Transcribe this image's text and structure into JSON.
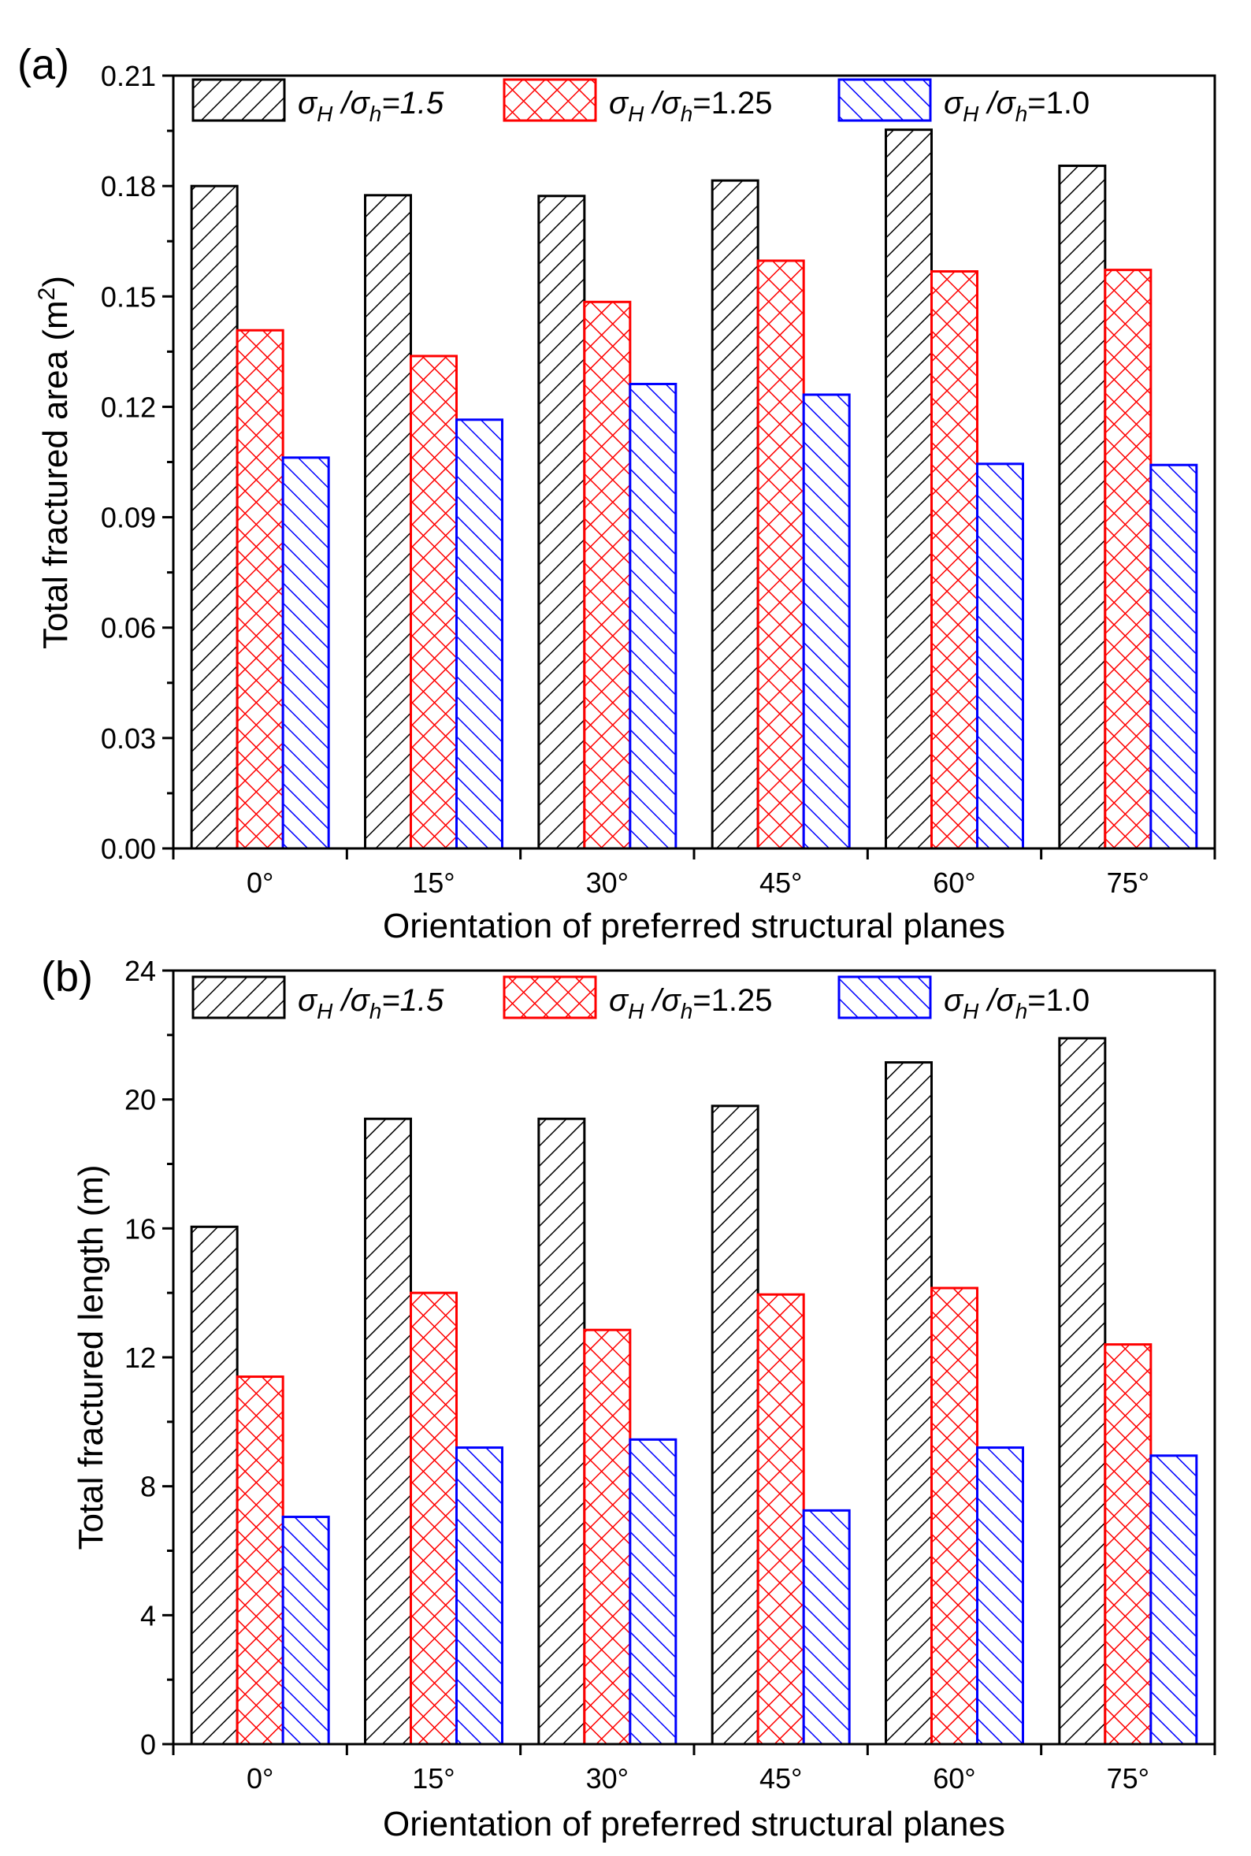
{
  "chart_data": [
    {
      "type": "bar",
      "panel_label": "(a)",
      "categories": [
        "0°",
        "15°",
        "30°",
        "45°",
        "60°",
        "75°"
      ],
      "series": [
        {
          "name": "σH/σh=1.5",
          "color": "#000000",
          "pattern": "hatch-forward",
          "values": [
            0.18,
            0.1775,
            0.1773,
            0.1815,
            0.1953,
            0.1855
          ]
        },
        {
          "name": "σH/σh=1.25",
          "color": "#ff0000",
          "pattern": "crosshatch",
          "values": [
            0.1408,
            0.1338,
            0.1485,
            0.1597,
            0.1568,
            0.1572
          ]
        },
        {
          "name": "σH/σh=1.0",
          "color": "#0000ff",
          "pattern": "hatch-backward",
          "values": [
            0.1062,
            0.1165,
            0.1262,
            0.1233,
            0.1045,
            0.1042
          ]
        }
      ],
      "xlabel": "Orientation of preferred structural planes",
      "ylabel_main": "Total fractured area (m",
      "ylabel_sup": "2",
      "ylabel_end": ")",
      "ylim": [
        0,
        0.21
      ],
      "yticks": [
        "0.00",
        "0.03",
        "0.06",
        "0.09",
        "0.12",
        "0.15",
        "0.18",
        "0.21"
      ],
      "legend": [
        {
          "sym": "σ",
          "sub1": "H",
          "mid": " /σ",
          "sub2": "h",
          "tail": "=1.5",
          "italic_tail": true
        },
        {
          "sym": "σ",
          "sub1": "H",
          "mid": " /σ",
          "sub2": "h",
          "tail": "=1.25",
          "italic_tail": false
        },
        {
          "sym": "σ",
          "sub1": "H",
          "mid": " /σ",
          "sub2": "h",
          "tail": "=1.0",
          "italic_tail": false
        }
      ],
      "legend_position": "top"
    },
    {
      "type": "bar",
      "panel_label": "(b)",
      "categories": [
        "0°",
        "15°",
        "30°",
        "45°",
        "60°",
        "75°"
      ],
      "series": [
        {
          "name": "σH/σh=1.5",
          "color": "#000000",
          "pattern": "hatch-forward",
          "values": [
            16.05,
            19.4,
            19.4,
            19.8,
            21.15,
            21.9
          ]
        },
        {
          "name": "σH/σh=1.25",
          "color": "#ff0000",
          "pattern": "crosshatch",
          "values": [
            11.4,
            14.0,
            12.85,
            13.95,
            14.15,
            12.4
          ]
        },
        {
          "name": "σH/σh=1.0",
          "color": "#0000ff",
          "pattern": "hatch-backward",
          "values": [
            7.05,
            9.2,
            9.45,
            7.25,
            9.2,
            8.95
          ]
        }
      ],
      "xlabel": "Orientation of preferred structural planes",
      "ylabel_main": "Total fractured length (m)",
      "ylabel_sup": "",
      "ylabel_end": "",
      "ylim": [
        0,
        24
      ],
      "yticks": [
        "0",
        "4",
        "8",
        "12",
        "16",
        "20",
        "24"
      ],
      "legend": [
        {
          "sym": "σ",
          "sub1": "H",
          "mid": " /σ",
          "sub2": "h",
          "tail": "=1.5",
          "italic_tail": true
        },
        {
          "sym": "σ",
          "sub1": "H",
          "mid": " /σ",
          "sub2": "h",
          "tail": "=1.25",
          "italic_tail": false
        },
        {
          "sym": "σ",
          "sub1": "H",
          "mid": " /σ",
          "sub2": "h",
          "tail": "=1.0",
          "italic_tail": false
        }
      ],
      "legend_position": "top"
    }
  ]
}
